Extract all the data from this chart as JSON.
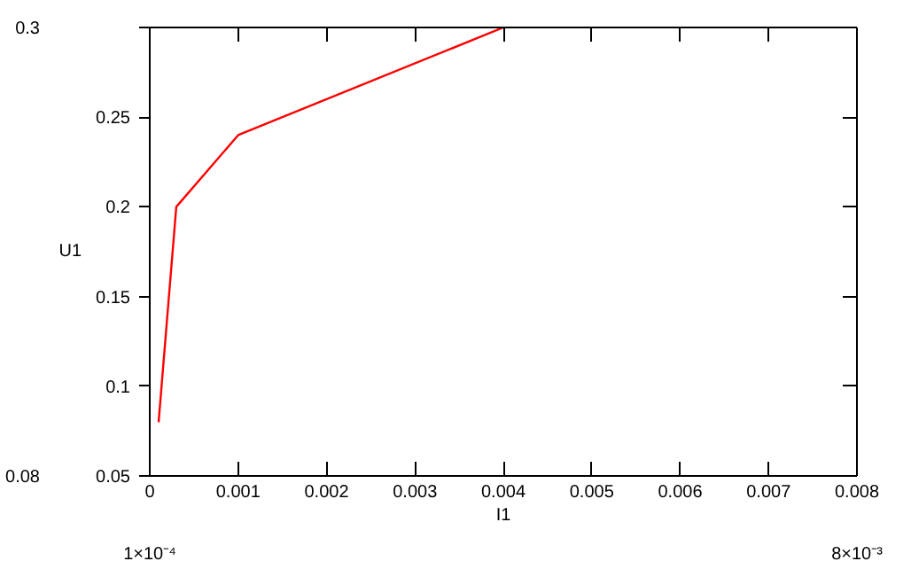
{
  "chart_data": {
    "type": "line",
    "xlabel": "I1",
    "ylabel": "U1",
    "x": [
      0.0001,
      0.0003,
      0.001,
      0.004
    ],
    "series": [
      {
        "color": "#ff0000",
        "values": [
          0.08,
          0.2,
          0.24,
          0.3
        ]
      }
    ],
    "xlim": [
      0,
      0.008
    ],
    "ylim": [
      0.05,
      0.3
    ],
    "xticks": [
      0,
      0.001,
      0.002,
      0.003,
      0.004,
      0.005,
      0.006,
      0.007,
      0.008
    ],
    "yticks": [
      0.05,
      0.1,
      0.15,
      0.2,
      0.25,
      {
        "value": 0.3,
        "label": null
      }
    ],
    "annotations": [
      "0.3",
      "0.08",
      "1×10⁻⁴",
      "8×10⁻³"
    ],
    "grid": false,
    "marker": "none",
    "line_style": "solid"
  }
}
